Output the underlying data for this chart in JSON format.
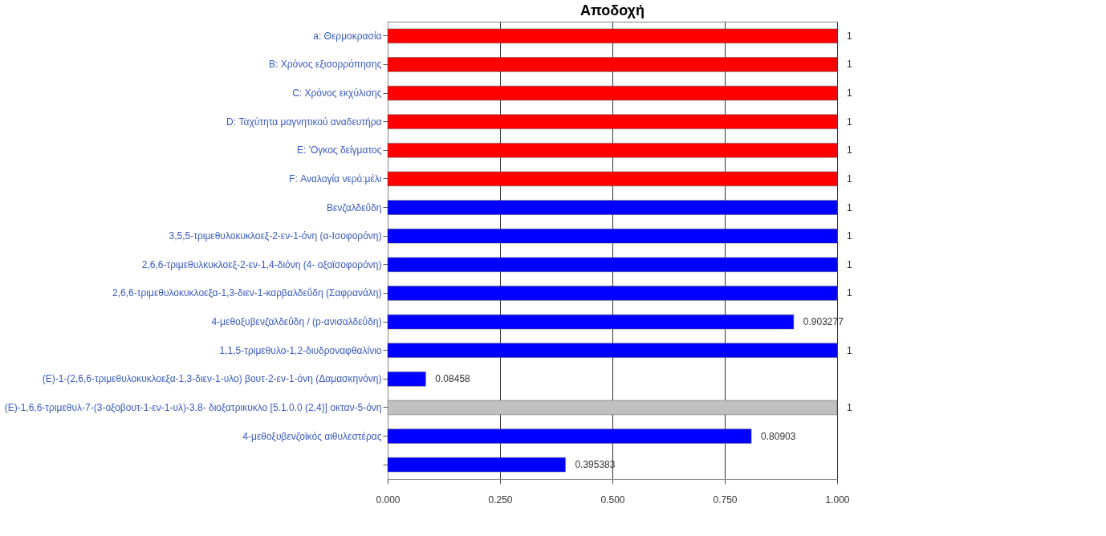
{
  "chart_data": {
    "type": "bar",
    "orientation": "horizontal",
    "title": "Αποδοχή",
    "categories": [
      "a: Θερμοκρασία",
      "B: Χρόνος εξισορρόπησης",
      "C: Χρόνος εκχύλισης",
      "D: Ταχύτητα μαγνητικού αναδευτήρα",
      "E: 'Ογκος δείγματος",
      "F: Αναλογία νερό:μέλι",
      "Βενζαλδεΰδη",
      "3,5,5-τριμεθυλοκυκλοεξ-2-εν-1-όνη (α-Ισοφορόνη)",
      "2,6,6-τριμεθυλκυκλοεξ-2-εν-1,4-διόνη (4- οξοϊσοφορόνη)",
      "2,6,6-τριμεθυλοκυκλοεξα-1,3-διεν-1-καρβαλδεΰδη (Σαφρανάλη)",
      "4-μεθοξυβενζαλδεΰδη / (p-ανισαλδεΰδη)",
      "1,1,5-τριμεθυλο-1,2-διυδροναφθαλίνιο",
      "(E)-1-(2,6,6-τριμεθυλοκυκλοεξα-1,3-διεν-1-υλο) βουτ-2-εν-1-όνη (Δαμασκηνόνη)",
      "(E)-1,6,6-τριμεθυλ-7-(3-οξοβουτ-1-εν-1-υλ)-3,8- διοξατρικυκλο [5.1.0.0 (2,4)] οκταν-5-όνη",
      "4-μεθοξυβενζοϊκός αιθυλεστέρας",
      null
    ],
    "values": [
      1,
      1,
      1,
      1,
      1,
      1,
      1,
      1,
      1,
      1,
      0.903277,
      1,
      0.08458,
      1,
      0.80903,
      0.395383
    ],
    "colors": [
      "#ff0000",
      "#ff0000",
      "#ff0000",
      "#ff0000",
      "#ff0000",
      "#ff0000",
      "#0000ff",
      "#0000ff",
      "#0000ff",
      "#0000ff",
      "#0000ff",
      "#0000ff",
      "#0000ff",
      "#c0c0c0",
      "#0000ff",
      "#0000ff"
    ],
    "xlim": [
      0,
      1
    ],
    "xticks": [
      {
        "value": 0,
        "label": "0.000"
      },
      {
        "value": 0.25,
        "label": "0.250"
      },
      {
        "value": 0.5,
        "label": "0.500"
      },
      {
        "value": 0.75,
        "label": "0.750"
      },
      {
        "value": 1,
        "label": "1.000"
      }
    ],
    "grid": "x",
    "data_labels": true
  }
}
